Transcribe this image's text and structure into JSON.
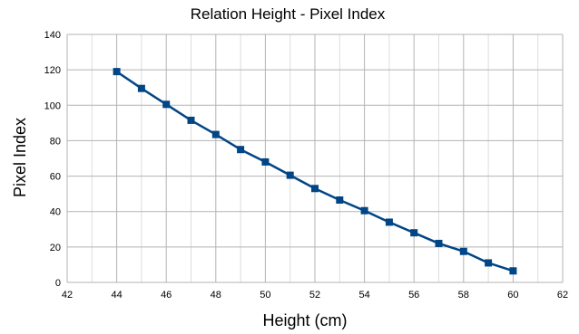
{
  "chart_data": {
    "type": "line",
    "title": "Relation Height - Pixel Index",
    "xlabel": "Height (cm)",
    "ylabel": "Pixel Index",
    "xlim": [
      42,
      62
    ],
    "ylim": [
      0,
      140
    ],
    "x_ticks": [
      42,
      44,
      46,
      48,
      50,
      52,
      54,
      56,
      58,
      60,
      62
    ],
    "y_ticks": [
      0,
      20,
      40,
      60,
      80,
      100,
      120,
      140
    ],
    "grid": true,
    "legend": "none",
    "series": [
      {
        "color": "#004586",
        "marker": "square",
        "x": [
          44,
          45,
          46,
          47,
          48,
          49,
          50,
          51,
          52,
          53,
          54,
          55,
          56,
          57,
          58,
          59,
          60
        ],
        "y": [
          119,
          109.5,
          100.5,
          91.5,
          83.5,
          75,
          68,
          60.5,
          53,
          46.5,
          40.5,
          34,
          28,
          22,
          17.5,
          11,
          6.5
        ]
      }
    ]
  }
}
